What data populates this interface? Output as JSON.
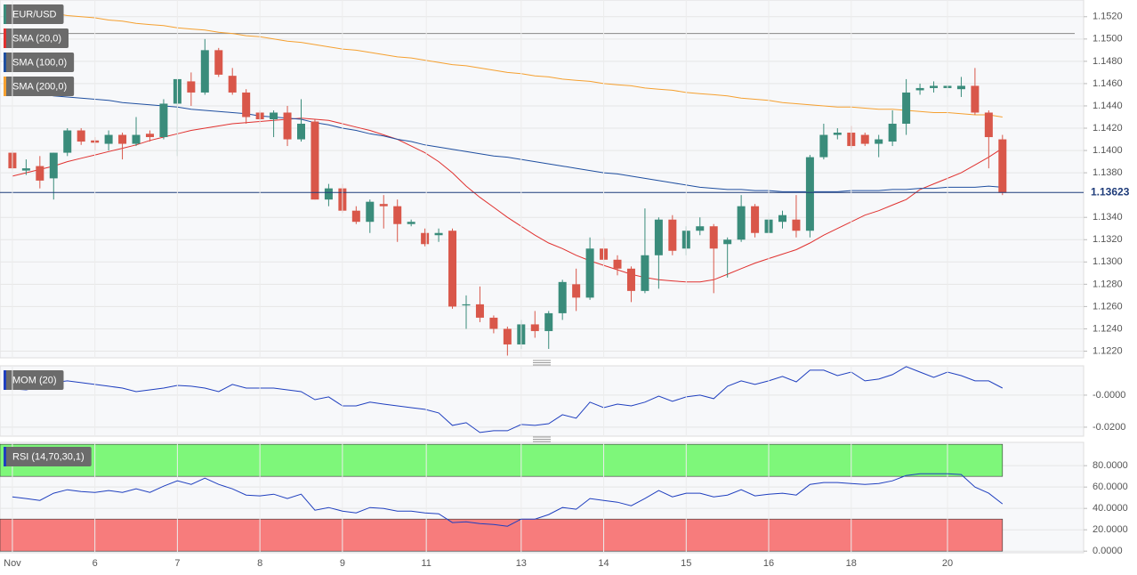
{
  "chart_data": [
    {
      "type": "candlestick",
      "name": "EUR/USD",
      "up_color": "#3a8c7b",
      "down_color": "#d9574a",
      "xlim": [
        -0.9,
        77.9
      ],
      "ylim": [
        1.1214,
        1.1535
      ],
      "yticks": [
        {
          "value": 1.122,
          "label": "1.1220"
        },
        {
          "value": 1.124,
          "label": "1.1240"
        },
        {
          "value": 1.126,
          "label": "1.1260"
        },
        {
          "value": 1.128,
          "label": "1.1280"
        },
        {
          "value": 1.13,
          "label": "1.1300"
        },
        {
          "value": 1.132,
          "label": "1.1320"
        },
        {
          "value": 1.134,
          "label": "1.1340"
        },
        {
          "value": 1.138,
          "label": "1.1380"
        },
        {
          "value": 1.14,
          "label": "1.1400"
        },
        {
          "value": 1.142,
          "label": "1.1420"
        },
        {
          "value": 1.144,
          "label": "1.1440"
        },
        {
          "value": 1.146,
          "label": "1.1460"
        },
        {
          "value": 1.148,
          "label": "1.1480"
        },
        {
          "value": 1.15,
          "label": "1.1500"
        },
        {
          "value": 1.152,
          "label": "1.1520"
        }
      ],
      "hline": 1.1505,
      "last_price": 1.13623,
      "last_price_color": "#1f3c7a",
      "grid": true,
      "open": [
        1.1398,
        1.1382,
        1.1386,
        1.1375,
        1.1398,
        1.1418,
        1.1409,
        1.1406,
        1.1414,
        1.1406,
        1.1415,
        1.1412,
        1.1442,
        1.1462,
        1.1452,
        1.149,
        1.1467,
        1.1452,
        1.1434,
        1.1428,
        1.1434,
        1.141,
        1.1426,
        1.1356,
        1.1366,
        1.1346,
        1.1336,
        1.1352,
        1.135,
        1.1334,
        1.1326,
        1.1324,
        1.1328,
        1.1261,
        1.1262,
        1.125,
        1.124,
        1.1226,
        1.1244,
        1.1238,
        1.1254,
        1.128,
        1.1268,
        1.1312,
        1.1302,
        1.1294,
        1.1274,
        1.1306,
        1.1338,
        1.1312,
        1.1328,
        1.1332,
        1.1316,
        1.132,
        1.135,
        1.1326,
        1.1336,
        1.1338,
        1.1328,
        1.1394,
        1.1414,
        1.1416,
        1.1414,
        1.1406,
        1.1408,
        1.1424,
        1.1454,
        1.1456,
        1.1456,
        1.1455,
        1.1458,
        1.1434,
        1.141
      ],
      "high": [
        1.14,
        1.1392,
        1.1395,
        1.1398,
        1.142,
        1.142,
        1.1412,
        1.1418,
        1.1416,
        1.143,
        1.1418,
        1.1446,
        1.1464,
        1.147,
        1.15,
        1.1492,
        1.1474,
        1.1455,
        1.1436,
        1.1436,
        1.144,
        1.1446,
        1.1428,
        1.137,
        1.137,
        1.135,
        1.1356,
        1.136,
        1.1356,
        1.1338,
        1.133,
        1.133,
        1.133,
        1.127,
        1.1278,
        1.1252,
        1.1242,
        1.1248,
        1.1256,
        1.1256,
        1.1284,
        1.1294,
        1.1322,
        1.1322,
        1.1306,
        1.1296,
        1.1348,
        1.134,
        1.1342,
        1.1332,
        1.134,
        1.1334,
        1.1322,
        1.136,
        1.1352,
        1.1344,
        1.1346,
        1.136,
        1.1396,
        1.1424,
        1.142,
        1.1422,
        1.1416,
        1.1414,
        1.1436,
        1.1464,
        1.146,
        1.1462,
        1.146,
        1.1466,
        1.1474,
        1.1436,
        1.1414
      ],
      "low": [
        1.1383,
        1.1378,
        1.1366,
        1.1356,
        1.1395,
        1.1405,
        1.14,
        1.14,
        1.1392,
        1.1404,
        1.1408,
        1.141,
        1.1395,
        1.144,
        1.145,
        1.1466,
        1.145,
        1.1424,
        1.1424,
        1.1412,
        1.1404,
        1.1408,
        1.1356,
        1.135,
        1.1344,
        1.1334,
        1.1326,
        1.133,
        1.1318,
        1.1332,
        1.1314,
        1.1318,
        1.1258,
        1.124,
        1.1246,
        1.1236,
        1.1216,
        1.1222,
        1.1232,
        1.1222,
        1.1248,
        1.1256,
        1.1266,
        1.1296,
        1.1288,
        1.1264,
        1.1272,
        1.1276,
        1.1306,
        1.1306,
        1.1324,
        1.1272,
        1.1286,
        1.1318,
        1.1322,
        1.1326,
        1.133,
        1.1322,
        1.1322,
        1.1392,
        1.141,
        1.1402,
        1.1404,
        1.1394,
        1.1404,
        1.1414,
        1.145,
        1.1452,
        1.1448,
        1.1448,
        1.1432,
        1.1384,
        1.136
      ],
      "close": [
        1.1384,
        1.1384,
        1.1373,
        1.1398,
        1.1418,
        1.1408,
        1.1407,
        1.1414,
        1.1406,
        1.1414,
        1.1412,
        1.1442,
        1.1464,
        1.1452,
        1.149,
        1.1468,
        1.1452,
        1.143,
        1.1428,
        1.1434,
        1.141,
        1.1424,
        1.1356,
        1.1366,
        1.1346,
        1.1336,
        1.1354,
        1.135,
        1.1334,
        1.1336,
        1.1316,
        1.1326,
        1.126,
        1.1262,
        1.125,
        1.124,
        1.1226,
        1.1244,
        1.1238,
        1.1254,
        1.1282,
        1.1268,
        1.1312,
        1.1302,
        1.1294,
        1.1274,
        1.1306,
        1.1338,
        1.131,
        1.1328,
        1.1332,
        1.1312,
        1.132,
        1.135,
        1.1326,
        1.1338,
        1.1342,
        1.1328,
        1.1394,
        1.1414,
        1.1416,
        1.1404,
        1.1406,
        1.141,
        1.1424,
        1.1452,
        1.1456,
        1.1458,
        1.1458,
        1.1458,
        1.1434,
        1.1412,
        1.1362
      ],
      "series": [
        {
          "name": "SMA (20,0)",
          "color": "#e0312f",
          "values": [
            1.1377,
            1.138,
            1.1383,
            1.1386,
            1.139,
            1.1393,
            1.1396,
            1.1399,
            1.1402,
            1.1405,
            1.1409,
            1.1412,
            1.1415,
            1.1418,
            1.142,
            1.1422,
            1.1424,
            1.1425,
            1.1426,
            1.1427,
            1.1428,
            1.1429,
            1.1428,
            1.1427,
            1.1424,
            1.1421,
            1.1418,
            1.1414,
            1.141,
            1.1404,
            1.1398,
            1.139,
            1.138,
            1.1368,
            1.1358,
            1.1349,
            1.134,
            1.1332,
            1.1324,
            1.1317,
            1.1312,
            1.1306,
            1.1301,
            1.1297,
            1.1293,
            1.1289,
            1.1286,
            1.1284,
            1.1283,
            1.1282,
            1.1282,
            1.1284,
            1.1289,
            1.1294,
            1.1299,
            1.1303,
            1.1307,
            1.1311,
            1.1317,
            1.1324,
            1.133,
            1.1336,
            1.1342,
            1.1346,
            1.1351,
            1.1356,
            1.1365,
            1.137,
            1.1375,
            1.138,
            1.1387,
            1.1394,
            1.1402
          ]
        },
        {
          "name": "SMA (100,0)",
          "color": "#1f4fa0",
          "values": [
            1.1453,
            1.1452,
            1.1451,
            1.1449,
            1.1448,
            1.1447,
            1.1446,
            1.1445,
            1.1443,
            1.1442,
            1.1441,
            1.144,
            1.1439,
            1.1437,
            1.1436,
            1.1435,
            1.1434,
            1.1433,
            1.1431,
            1.143,
            1.1429,
            1.1428,
            1.1425,
            1.1423,
            1.142,
            1.1418,
            1.1415,
            1.1413,
            1.141,
            1.1408,
            1.1405,
            1.1403,
            1.1401,
            1.1399,
            1.1397,
            1.1395,
            1.1394,
            1.1392,
            1.139,
            1.1388,
            1.1386,
            1.1384,
            1.1382,
            1.138,
            1.1379,
            1.1377,
            1.1375,
            1.1373,
            1.1371,
            1.1369,
            1.1367,
            1.1366,
            1.1365,
            1.1365,
            1.1364,
            1.1364,
            1.1363,
            1.1363,
            1.1363,
            1.1363,
            1.1363,
            1.1364,
            1.1364,
            1.1364,
            1.1365,
            1.1365,
            1.1366,
            1.1366,
            1.1367,
            1.1367,
            1.1367,
            1.1368,
            1.1367
          ]
        },
        {
          "name": "SMA (200,0)",
          "color": "#f5a030",
          "values": [
            1.1527,
            1.1526,
            1.1524,
            1.1523,
            1.1521,
            1.152,
            1.1519,
            1.1517,
            1.1516,
            1.1514,
            1.1513,
            1.1512,
            1.151,
            1.1509,
            1.1508,
            1.1506,
            1.1505,
            1.1503,
            1.1502,
            1.15,
            1.1498,
            1.1497,
            1.1495,
            1.1493,
            1.1491,
            1.149,
            1.1488,
            1.1486,
            1.1484,
            1.1483,
            1.1481,
            1.1479,
            1.1477,
            1.1476,
            1.1474,
            1.1472,
            1.147,
            1.1469,
            1.1467,
            1.1466,
            1.1464,
            1.1463,
            1.1462,
            1.146,
            1.1459,
            1.1458,
            1.1456,
            1.1455,
            1.1454,
            1.1452,
            1.1451,
            1.145,
            1.1449,
            1.1447,
            1.1446,
            1.1445,
            1.1443,
            1.1442,
            1.1441,
            1.144,
            1.1439,
            1.1439,
            1.1438,
            1.1437,
            1.1437,
            1.1436,
            1.1435,
            1.1434,
            1.1434,
            1.1433,
            1.1432,
            1.1432,
            1.143
          ]
        }
      ]
    },
    {
      "type": "line",
      "xlim": [
        -0.9,
        77.9
      ],
      "ylim": [
        -0.0256,
        0.0183
      ],
      "grid": true,
      "yticks": [
        {
          "value": 0,
          "label": "-0.0000"
        },
        {
          "value": -0.02,
          "label": "-0.0200"
        }
      ],
      "series": [
        {
          "name": "MOM (20)",
          "color": "#1f3fbf",
          "values": [
            0.0039,
            0.0033,
            0.005,
            0.0078,
            0.0089,
            0.0078,
            0.0067,
            0.0056,
            0.0044,
            0.0022,
            0.0033,
            0.0044,
            0.0061,
            0.0056,
            0.0044,
            0.0022,
            0.0067,
            0.0044,
            0.0044,
            0.0044,
            0.0033,
            0.0022,
            -0.0028,
            -0.0011,
            -0.0067,
            -0.0067,
            -0.0044,
            -0.0056,
            -0.0067,
            -0.0078,
            -0.0089,
            -0.0111,
            -0.0189,
            -0.0172,
            -0.0233,
            -0.0222,
            -0.0222,
            -0.0183,
            -0.0189,
            -0.0178,
            -0.0122,
            -0.0144,
            -0.0044,
            -0.0078,
            -0.0056,
            -0.0067,
            -0.0044,
            -0.0006,
            -0.0039,
            -0.0011,
            0,
            -0.0022,
            0.0056,
            0.0089,
            0.0067,
            0.0089,
            0.0117,
            0.0083,
            0.0156,
            0.0156,
            0.0122,
            0.0144,
            0.0089,
            0.01,
            0.0128,
            0.0178,
            0.0144,
            0.0111,
            0.0144,
            0.0122,
            0.0089,
            0.0089,
            0.0044
          ]
        }
      ]
    },
    {
      "type": "line",
      "xlim": [
        -0.9,
        77.9
      ],
      "ylim": [
        -1.5,
        101.8
      ],
      "grid": true,
      "yticks": [
        {
          "value": 0,
          "label": "0.0000"
        },
        {
          "value": 20,
          "label": "20.0000"
        },
        {
          "value": 40,
          "label": "40.0000"
        },
        {
          "value": 60,
          "label": "60.0000"
        },
        {
          "value": 80,
          "label": "80.0000"
        }
      ],
      "bands": [
        {
          "range": [
            70,
            100
          ],
          "color": "#7ef77a"
        },
        {
          "range": [
            0,
            30
          ],
          "color": "#f77c7c"
        }
      ],
      "xticks": [
        {
          "value": 0,
          "label": "Nov"
        },
        {
          "value": 6,
          "label": "6"
        },
        {
          "value": 12,
          "label": "7"
        },
        {
          "value": 18,
          "label": "8"
        },
        {
          "value": 24,
          "label": "9"
        },
        {
          "value": 30.1,
          "label": "11"
        },
        {
          "value": 37,
          "label": "13"
        },
        {
          "value": 43,
          "label": "14"
        },
        {
          "value": 49,
          "label": "15"
        },
        {
          "value": 55,
          "label": "16"
        },
        {
          "value": 61,
          "label": "18"
        },
        {
          "value": 68,
          "label": "20"
        }
      ],
      "series": [
        {
          "name": "RSI (14,70,30,1)",
          "color": "#1f3fbf",
          "values": [
            50.8,
            49.2,
            47.5,
            54.2,
            57.5,
            55.8,
            55.0,
            56.7,
            55.0,
            58.3,
            55.0,
            60.8,
            65.8,
            62.5,
            68.3,
            62.5,
            58.3,
            52.5,
            51.7,
            53.3,
            49.2,
            53.3,
            38.3,
            40.8,
            37.5,
            35.8,
            40.8,
            40.0,
            37.5,
            37.5,
            35.8,
            35.0,
            26.7,
            27.5,
            25.8,
            25.0,
            23.3,
            30.0,
            30.0,
            34.2,
            40.8,
            39.2,
            49.2,
            47.5,
            45.8,
            42.5,
            49.2,
            56.7,
            50.8,
            54.2,
            54.2,
            50.8,
            52.5,
            57.5,
            51.7,
            53.3,
            54.2,
            52.5,
            62.5,
            64.2,
            64.2,
            63.3,
            62.5,
            63.3,
            65.8,
            70.8,
            72.5,
            72.5,
            72.5,
            71.7,
            60.0,
            54.2,
            44.2
          ]
        }
      ]
    }
  ]
}
